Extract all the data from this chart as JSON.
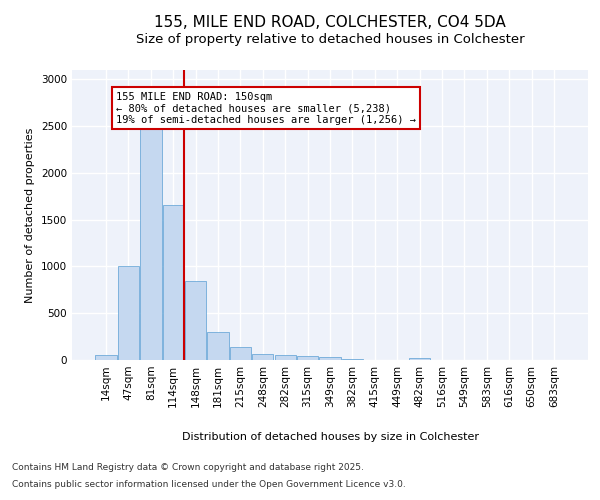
{
  "title_line1": "155, MILE END ROAD, COLCHESTER, CO4 5DA",
  "title_line2": "Size of property relative to detached houses in Colchester",
  "xlabel": "Distribution of detached houses by size in Colchester",
  "ylabel": "Number of detached properties",
  "categories": [
    "14sqm",
    "47sqm",
    "81sqm",
    "114sqm",
    "148sqm",
    "181sqm",
    "215sqm",
    "248sqm",
    "282sqm",
    "315sqm",
    "349sqm",
    "382sqm",
    "415sqm",
    "449sqm",
    "482sqm",
    "516sqm",
    "549sqm",
    "583sqm",
    "616sqm",
    "650sqm",
    "683sqm"
  ],
  "values": [
    55,
    1010,
    2500,
    1660,
    840,
    295,
    140,
    60,
    55,
    40,
    30,
    15,
    0,
    0,
    25,
    0,
    0,
    0,
    0,
    0,
    0
  ],
  "bar_color": "#c5d8f0",
  "bar_edge_color": "#5a9fd4",
  "vline_x": 3.5,
  "vline_color": "#cc0000",
  "annotation_text": "155 MILE END ROAD: 150sqm\n← 80% of detached houses are smaller (5,238)\n19% of semi-detached houses are larger (1,256) →",
  "annotation_box_color": "#cc0000",
  "ylim": [
    0,
    3100
  ],
  "yticks": [
    0,
    500,
    1000,
    1500,
    2000,
    2500,
    3000
  ],
  "footnote_line1": "Contains HM Land Registry data © Crown copyright and database right 2025.",
  "footnote_line2": "Contains public sector information licensed under the Open Government Licence v3.0.",
  "bg_color": "#eef2fa",
  "grid_color": "#ffffff",
  "title_fontsize": 11,
  "subtitle_fontsize": 9.5,
  "axis_label_fontsize": 8,
  "tick_fontsize": 7.5,
  "footnote_fontsize": 6.5,
  "annotation_fontsize": 7.5
}
